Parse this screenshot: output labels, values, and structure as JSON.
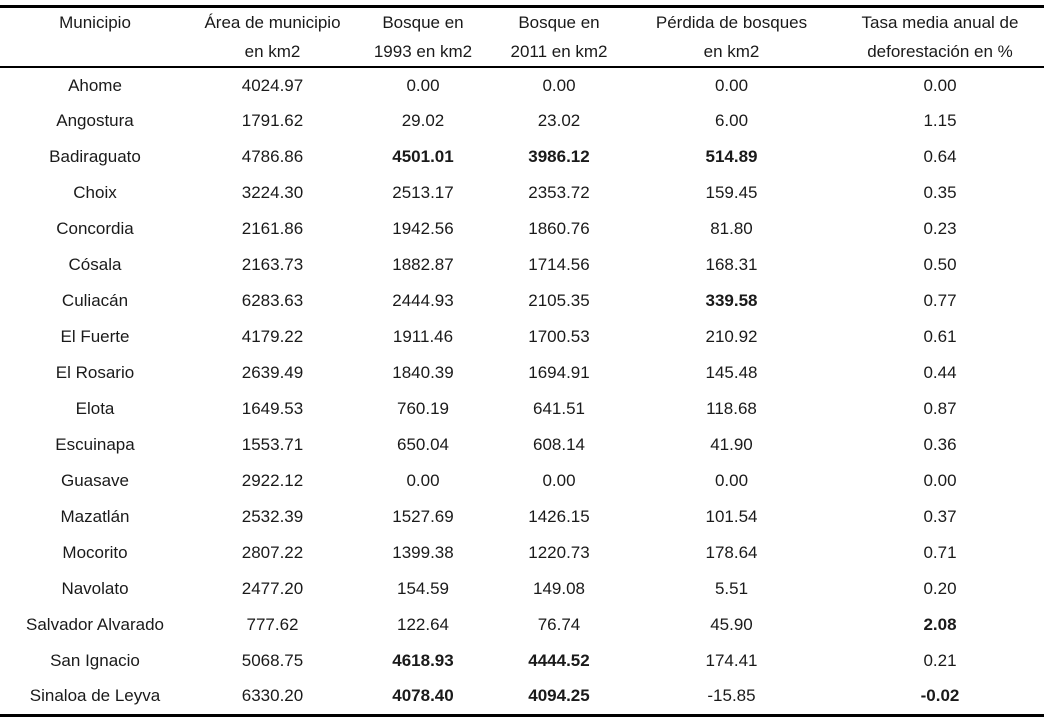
{
  "page": {
    "background_color": "#ffffff",
    "text_color": "#1a1a1a",
    "rule_color": "#000000"
  },
  "table": {
    "headers": [
      {
        "line1": "Municipio",
        "line2": ""
      },
      {
        "line1": "Área de municipio",
        "line2": "en km2"
      },
      {
        "line1": "Bosque en",
        "line2": "1993 en km2"
      },
      {
        "line1": "Bosque en",
        "line2": "2011 en km2"
      },
      {
        "line1": "Pérdida de bosques",
        "line2": "en km2"
      },
      {
        "line1": "Tasa media anual de",
        "line2": "deforestación en %"
      }
    ],
    "column_keys": [
      "municipio",
      "area_km2",
      "bosque_1993_km2",
      "bosque_2011_km2",
      "perdida_km2",
      "tasa_pct"
    ],
    "rows": [
      {
        "municipio": "Ahome",
        "area_km2": "4024.97",
        "bosque_1993_km2": "0.00",
        "bosque_2011_km2": "0.00",
        "perdida_km2": "0.00",
        "tasa_pct": "0.00",
        "bold_cells": []
      },
      {
        "municipio": "Angostura",
        "area_km2": "1791.62",
        "bosque_1993_km2": "29.02",
        "bosque_2011_km2": "23.02",
        "perdida_km2": "6.00",
        "tasa_pct": "1.15",
        "bold_cells": []
      },
      {
        "municipio": "Badiraguato",
        "area_km2": "4786.86",
        "bosque_1993_km2": "4501.01",
        "bosque_2011_km2": "3986.12",
        "perdida_km2": "514.89",
        "tasa_pct": "0.64",
        "bold_cells": [
          "bosque_1993_km2",
          "bosque_2011_km2",
          "perdida_km2"
        ]
      },
      {
        "municipio": "Choix",
        "area_km2": "3224.30",
        "bosque_1993_km2": "2513.17",
        "bosque_2011_km2": "2353.72",
        "perdida_km2": "159.45",
        "tasa_pct": "0.35",
        "bold_cells": []
      },
      {
        "municipio": "Concordia",
        "area_km2": "2161.86",
        "bosque_1993_km2": "1942.56",
        "bosque_2011_km2": "1860.76",
        "perdida_km2": "81.80",
        "tasa_pct": "0.23",
        "bold_cells": []
      },
      {
        "municipio": "Cósala",
        "area_km2": "2163.73",
        "bosque_1993_km2": "1882.87",
        "bosque_2011_km2": "1714.56",
        "perdida_km2": "168.31",
        "tasa_pct": "0.50",
        "bold_cells": []
      },
      {
        "municipio": "Culiacán",
        "area_km2": "6283.63",
        "bosque_1993_km2": "2444.93",
        "bosque_2011_km2": "2105.35",
        "perdida_km2": "339.58",
        "tasa_pct": "0.77",
        "bold_cells": [
          "perdida_km2"
        ]
      },
      {
        "municipio": "El Fuerte",
        "area_km2": "4179.22",
        "bosque_1993_km2": "1911.46",
        "bosque_2011_km2": "1700.53",
        "perdida_km2": "210.92",
        "tasa_pct": "0.61",
        "bold_cells": []
      },
      {
        "municipio": "El Rosario",
        "area_km2": "2639.49",
        "bosque_1993_km2": "1840.39",
        "bosque_2011_km2": "1694.91",
        "perdida_km2": "145.48",
        "tasa_pct": "0.44",
        "bold_cells": []
      },
      {
        "municipio": "Elota",
        "area_km2": "1649.53",
        "bosque_1993_km2": "760.19",
        "bosque_2011_km2": "641.51",
        "perdida_km2": "118.68",
        "tasa_pct": "0.87",
        "bold_cells": []
      },
      {
        "municipio": "Escuinapa",
        "area_km2": "1553.71",
        "bosque_1993_km2": "650.04",
        "bosque_2011_km2": "608.14",
        "perdida_km2": "41.90",
        "tasa_pct": "0.36",
        "bold_cells": []
      },
      {
        "municipio": "Guasave",
        "area_km2": "2922.12",
        "bosque_1993_km2": "0.00",
        "bosque_2011_km2": "0.00",
        "perdida_km2": "0.00",
        "tasa_pct": "0.00",
        "bold_cells": []
      },
      {
        "municipio": "Mazatlán",
        "area_km2": "2532.39",
        "bosque_1993_km2": "1527.69",
        "bosque_2011_km2": "1426.15",
        "perdida_km2": "101.54",
        "tasa_pct": "0.37",
        "bold_cells": []
      },
      {
        "municipio": "Mocorito",
        "area_km2": "2807.22",
        "bosque_1993_km2": "1399.38",
        "bosque_2011_km2": "1220.73",
        "perdida_km2": "178.64",
        "tasa_pct": "0.71",
        "bold_cells": []
      },
      {
        "municipio": "Navolato",
        "area_km2": "2477.20",
        "bosque_1993_km2": "154.59",
        "bosque_2011_km2": "149.08",
        "perdida_km2": "5.51",
        "tasa_pct": "0.20",
        "bold_cells": []
      },
      {
        "municipio": "Salvador Alvarado",
        "area_km2": "777.62",
        "bosque_1993_km2": "122.64",
        "bosque_2011_km2": "76.74",
        "perdida_km2": "45.90",
        "tasa_pct": "2.08",
        "bold_cells": [
          "tasa_pct"
        ]
      },
      {
        "municipio": "San Ignacio",
        "area_km2": "5068.75",
        "bosque_1993_km2": "4618.93",
        "bosque_2011_km2": "4444.52",
        "perdida_km2": "174.41",
        "tasa_pct": "0.21",
        "bold_cells": [
          "bosque_1993_km2",
          "bosque_2011_km2"
        ]
      },
      {
        "municipio": "Sinaloa de Leyva",
        "area_km2": "6330.20",
        "bosque_1993_km2": "4078.40",
        "bosque_2011_km2": "4094.25",
        "perdida_km2": "-15.85",
        "tasa_pct": "-0.02",
        "bold_cells": [
          "bosque_1993_km2",
          "bosque_2011_km2",
          "tasa_pct"
        ]
      }
    ]
  }
}
